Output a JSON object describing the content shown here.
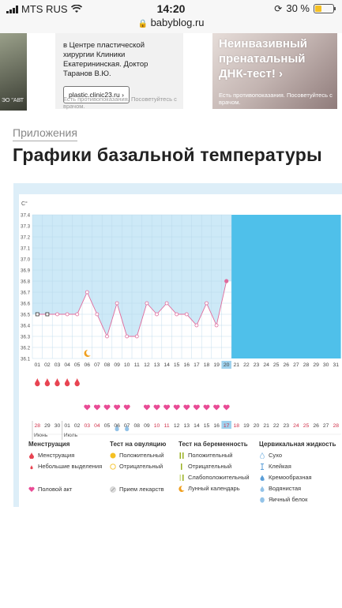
{
  "statusbar": {
    "carrier": "MTS RUS",
    "time": "14:20",
    "url": "babyblog.ru",
    "battery": "30 %"
  },
  "ads": [
    {
      "image_caption": "ЭО \"АВТ",
      "text": "в Центре пластической хирургии Клиники Екатерининская. Доктор Таранов В.Ю.",
      "button": "plastic.clinic23.ru ›",
      "note": "Есть противопоказания. Посоветуйтесь с врачом."
    },
    {
      "title": "Неинвазивный пренатальный ДНК-тест! ›",
      "note": "Есть противопоказания. Посоветуйтесь с врачом."
    }
  ],
  "breadcrumb": "Приложения",
  "page_title": "Графики базальной температуры",
  "chart_data": {
    "type": "line",
    "title": "",
    "ylabel": "С°",
    "ylim": [
      36.1,
      37.4
    ],
    "yticks": [
      "37.4",
      "37.3",
      "37.2",
      "37.1",
      "37.0",
      "36.9",
      "36.8",
      "36.7",
      "36.6",
      "36.5",
      "36.4",
      "36.3",
      "36.2",
      "36.1"
    ],
    "cycle_days": [
      "01",
      "02",
      "03",
      "04",
      "05",
      "06",
      "07",
      "08",
      "09",
      "10",
      "11",
      "12",
      "13",
      "14",
      "15",
      "16",
      "17",
      "18",
      "19",
      "20",
      "21",
      "22",
      "23",
      "24",
      "25",
      "26",
      "27",
      "28",
      "29",
      "30",
      "31"
    ],
    "current_day": "20",
    "series": [
      {
        "values": [
          36.5,
          36.5,
          36.5,
          36.5,
          36.5,
          36.7,
          36.5,
          36.3,
          36.6,
          36.3,
          36.3,
          36.6,
          36.5,
          36.6,
          36.5,
          36.5,
          36.4,
          36.6,
          36.4,
          36.8
        ]
      }
    ],
    "square_marker_days": [
      "01",
      "02"
    ],
    "calendar_dates": [
      "28",
      "29",
      "30",
      "01",
      "02",
      "03",
      "04",
      "05",
      "06",
      "07",
      "08",
      "09",
      "10",
      "11",
      "12",
      "13",
      "14",
      "15",
      "16",
      "17",
      "18",
      "19",
      "20",
      "21",
      "22",
      "23",
      "24",
      "25",
      "26",
      "27",
      "28"
    ],
    "highlight_date": "17",
    "month_labels": [
      {
        "label": "Июнь",
        "at_day": "01"
      },
      {
        "label": "Июль",
        "at_day": "04"
      }
    ],
    "weekend_dates": [
      "28",
      "03",
      "04",
      "10",
      "11",
      "17",
      "18",
      "24",
      "25"
    ],
    "menstruation_days": [
      "01",
      "02",
      "03",
      "04",
      "05"
    ],
    "intercourse_days": [
      "06",
      "07",
      "08",
      "09",
      "10",
      "12",
      "13",
      "14",
      "15",
      "16",
      "17",
      "18",
      "19",
      "20"
    ],
    "cervical_watery_days": [
      "09",
      "10"
    ],
    "lunar_day": "06"
  },
  "legend": {
    "menstruation": {
      "header": "Менструация",
      "items": [
        "Менструация",
        "Небольшие выделения"
      ]
    },
    "ovulation": {
      "header": "Тест на овуляцию",
      "items": [
        "Положительный",
        "Отрицательный"
      ]
    },
    "pregnancy": {
      "header": "Тест на беременность",
      "items": [
        "Положительный",
        "Отрицательный",
        "Слабоположительный"
      ]
    },
    "cervical": {
      "header": "Цервикальная жидкость",
      "items": [
        "Сухо",
        "Клейкая",
        "Кремообразная",
        "Водянистая",
        "Яичный белок"
      ]
    },
    "other": [
      "Половой акт",
      "Прием лекарств",
      "Лунный календарь"
    ]
  },
  "colors": {
    "chart_bg": "#4fc0ea",
    "fill": "#cde9f7",
    "line": "#e06b9c",
    "marker_red": "#e84452",
    "marker_pink": "#e94b95",
    "marker_blue": "#93c3e8",
    "moon": "#f0a020"
  }
}
